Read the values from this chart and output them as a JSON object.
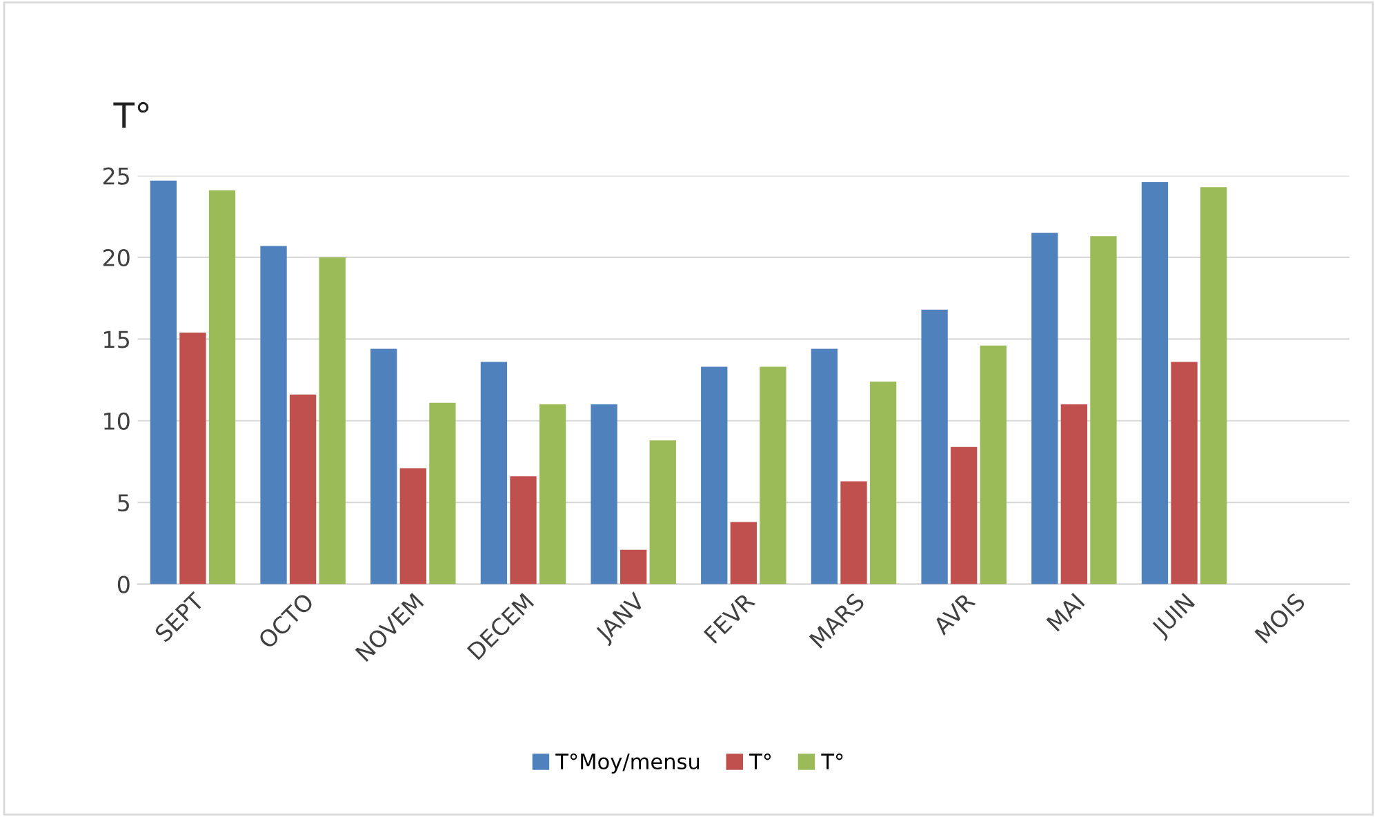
{
  "chart_data": {
    "type": "bar",
    "ylabel": "T°",
    "categories": [
      "SEPT",
      "OCTO",
      "NOVEM",
      "DECEM",
      "JANV",
      "FEVR",
      "MARS",
      "AVR",
      "MAI",
      "JUIN",
      "MOIS"
    ],
    "series": [
      {
        "name": "T°Moy/mensu",
        "color": "#4f81bd",
        "values": [
          24.7,
          20.7,
          14.4,
          13.6,
          11.0,
          13.3,
          14.4,
          16.8,
          21.5,
          24.6,
          null
        ]
      },
      {
        "name": "T°",
        "color": "#c0504d",
        "values": [
          15.4,
          11.6,
          7.1,
          6.6,
          2.1,
          3.8,
          6.3,
          8.4,
          11.0,
          13.6,
          null
        ]
      },
      {
        "name": "T°",
        "color": "#9bbb59",
        "values": [
          24.1,
          20.0,
          11.1,
          11.0,
          8.8,
          13.3,
          12.4,
          14.6,
          21.3,
          24.3,
          null
        ]
      }
    ],
    "ylim": [
      0,
      25
    ],
    "yticks": [
      0,
      5,
      10,
      15,
      20,
      25
    ],
    "grid": "y",
    "legend": "bottom"
  }
}
